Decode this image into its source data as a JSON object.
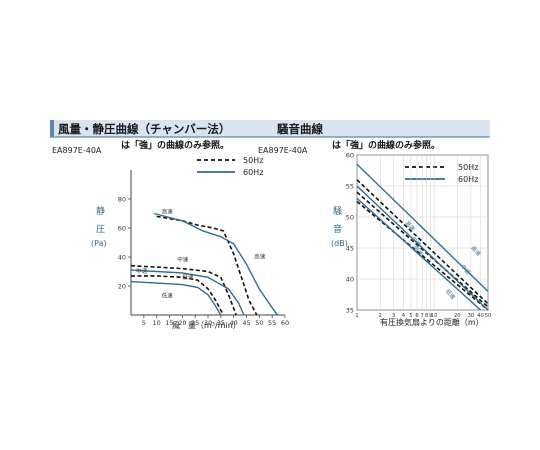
{
  "header": {
    "left_title": "風量・静圧曲線（チャンバー法）",
    "right_title": "騒音曲線",
    "accent_color": "#5a86b8",
    "background_color": "#d8e4f0"
  },
  "legend": {
    "items": [
      {
        "label": "50Hz",
        "style": "dashed",
        "color": "#111111"
      },
      {
        "label": "60Hz",
        "style": "solid",
        "color": "#2b6f8f"
      }
    ]
  },
  "chart_data": [
    {
      "type": "line",
      "model": "EA897E-40A",
      "note": "は「強」の曲線のみ参照。",
      "ylabel": "静\n圧\n(Pa)",
      "xlabel": "風　量（m³/min）",
      "xlim": [
        0,
        60
      ],
      "ylim": [
        0,
        100
      ],
      "xticks": [
        5,
        10,
        15,
        20,
        25,
        30,
        35,
        40,
        45,
        50,
        55,
        60
      ],
      "yticks": [
        20,
        40,
        60,
        80
      ],
      "series": [
        {
          "group": "50Hz",
          "label": "高速",
          "style": "dashed",
          "x": [
            10,
            20,
            26,
            32,
            36,
            40,
            43,
            46,
            49
          ],
          "y": [
            68,
            65,
            62,
            60,
            58,
            42,
            26,
            10,
            0
          ]
        },
        {
          "group": "50Hz",
          "label": "中速",
          "style": "dashed",
          "x": [
            0,
            10,
            20,
            30,
            35,
            38,
            41
          ],
          "y": [
            34,
            33,
            32,
            30,
            26,
            14,
            0
          ]
        },
        {
          "group": "50Hz",
          "label": "低速",
          "style": "dashed",
          "x": [
            0,
            10,
            20,
            26,
            30,
            33,
            36
          ],
          "y": [
            27,
            27,
            26,
            24,
            18,
            10,
            0
          ]
        },
        {
          "group": "60Hz",
          "label": "高速",
          "style": "solid",
          "x": [
            9,
            20,
            28,
            35,
            40,
            45,
            50,
            55,
            57
          ],
          "y": [
            70,
            65,
            58,
            54,
            49,
            35,
            18,
            5,
            0
          ]
        },
        {
          "group": "60Hz",
          "label": "中速",
          "style": "solid",
          "x": [
            0,
            10,
            20,
            30,
            38,
            42,
            44
          ],
          "y": [
            31,
            30,
            29,
            26,
            18,
            8,
            0
          ]
        },
        {
          "group": "60Hz",
          "label": "低速",
          "style": "solid",
          "x": [
            0,
            10,
            20,
            26,
            30,
            33,
            35
          ],
          "y": [
            23,
            22,
            21,
            19,
            14,
            6,
            0
          ]
        }
      ],
      "annotations": [
        {
          "text": "高速",
          "x": 12,
          "y": 70
        },
        {
          "text": "中速",
          "x": 18,
          "y": 37
        },
        {
          "text": "中速",
          "x": 2,
          "y": 29
        },
        {
          "text": "低速",
          "x": 20,
          "y": 25
        },
        {
          "text": "高速",
          "x": 48,
          "y": 39
        },
        {
          "text": "低速",
          "x": 12,
          "y": 12
        }
      ]
    },
    {
      "type": "line",
      "model": "EA897E-40A",
      "note": "は「強」の曲線のみ参照。",
      "ylabel": "騒\n音\n(dB)",
      "xlabel": "有圧換気扇よりの距離（m）",
      "xscale": "log",
      "xlim": [
        1,
        50
      ],
      "ylim": [
        35,
        60
      ],
      "xtick_labels": [
        "1",
        "2",
        "3",
        "4",
        "5",
        "6",
        "7",
        "8",
        "9",
        "10",
        "20",
        "30",
        "40",
        "50"
      ],
      "yticks": [
        35,
        40,
        45,
        50,
        55,
        60
      ],
      "series": [
        {
          "group": "50Hz",
          "label": "高速",
          "style": "dashed",
          "x": [
            1,
            50
          ],
          "y": [
            56,
            36
          ]
        },
        {
          "group": "50Hz",
          "label": "中速",
          "style": "dashed",
          "x": [
            1,
            50
          ],
          "y": [
            54,
            35.5
          ]
        },
        {
          "group": "50Hz",
          "label": "低速",
          "style": "dashed",
          "x": [
            1,
            50
          ],
          "y": [
            52.5,
            35
          ]
        },
        {
          "group": "60Hz",
          "label": "高速",
          "style": "solid",
          "x": [
            1,
            50
          ],
          "y": [
            58.5,
            38
          ]
        },
        {
          "group": "60Hz",
          "label": "中速",
          "style": "solid",
          "x": [
            1,
            50
          ],
          "y": [
            55,
            35
          ]
        },
        {
          "group": "60Hz",
          "label": "低速",
          "style": "solid",
          "x": [
            1,
            40
          ],
          "y": [
            53,
            35
          ]
        }
      ],
      "annotations": [
        {
          "text": "高速",
          "x": 4.2,
          "y": 49
        },
        {
          "text": "中速",
          "x": 5,
          "y": 46.5
        },
        {
          "text": "低速",
          "x": 5.3,
          "y": 45
        },
        {
          "text": "高速",
          "x": 30,
          "y": 45
        },
        {
          "text": "中速",
          "x": 22,
          "y": 42
        },
        {
          "text": "低速",
          "x": 14,
          "y": 38
        }
      ]
    }
  ]
}
